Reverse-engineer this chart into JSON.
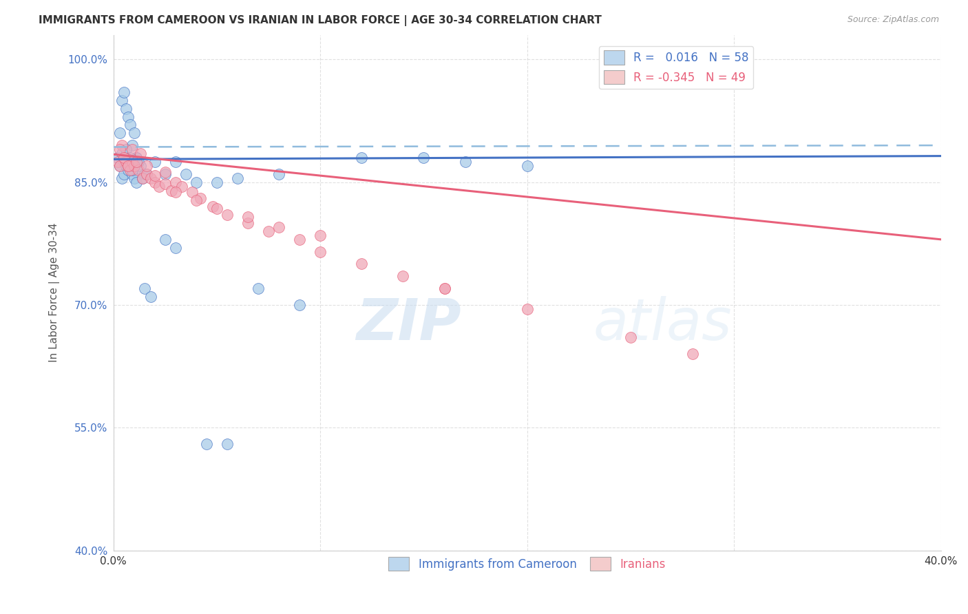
{
  "title": "IMMIGRANTS FROM CAMEROON VS IRANIAN IN LABOR FORCE | AGE 30-34 CORRELATION CHART",
  "source": "Source: ZipAtlas.com",
  "ylabel": "In Labor Force | Age 30-34",
  "xlim": [
    0.0,
    0.4
  ],
  "ylim": [
    0.4,
    1.03
  ],
  "xticks": [
    0.0,
    0.1,
    0.2,
    0.3,
    0.4
  ],
  "xtick_labels": [
    "0.0%",
    "",
    "",
    "",
    "40.0%"
  ],
  "ytick_labels": [
    "40.0%",
    "55.0%",
    "70.0%",
    "85.0%",
    "100.0%"
  ],
  "yticks": [
    0.4,
    0.55,
    0.7,
    0.85,
    1.0
  ],
  "R_blue": 0.016,
  "N_blue": 58,
  "R_pink": -0.345,
  "N_pink": 49,
  "blue_color": "#A8CCE8",
  "pink_color": "#F0A8B8",
  "blue_line_color": "#4472C4",
  "pink_line_color": "#E8607A",
  "dashed_line_color": "#90BBDD",
  "legend_box_blue": "#BDD7EE",
  "legend_box_pink": "#F4CCCC",
  "blue_points_x": [
    0.002,
    0.003,
    0.004,
    0.005,
    0.006,
    0.007,
    0.008,
    0.009,
    0.01,
    0.011,
    0.003,
    0.004,
    0.005,
    0.006,
    0.007,
    0.008,
    0.009,
    0.01,
    0.011,
    0.012,
    0.004,
    0.005,
    0.006,
    0.007,
    0.008,
    0.009,
    0.01,
    0.011,
    0.013,
    0.015,
    0.006,
    0.007,
    0.008,
    0.009,
    0.01,
    0.012,
    0.014,
    0.016,
    0.02,
    0.025,
    0.03,
    0.035,
    0.04,
    0.05,
    0.06,
    0.08,
    0.12,
    0.15,
    0.17,
    0.2,
    0.015,
    0.018,
    0.025,
    0.03,
    0.045,
    0.055,
    0.07,
    0.09
  ],
  "blue_points_y": [
    0.88,
    0.91,
    0.95,
    0.96,
    0.94,
    0.93,
    0.92,
    0.895,
    0.91,
    0.88,
    0.87,
    0.885,
    0.875,
    0.89,
    0.87,
    0.875,
    0.865,
    0.87,
    0.88,
    0.86,
    0.855,
    0.86,
    0.87,
    0.865,
    0.875,
    0.86,
    0.855,
    0.85,
    0.87,
    0.86,
    0.875,
    0.87,
    0.88,
    0.865,
    0.87,
    0.875,
    0.855,
    0.86,
    0.875,
    0.86,
    0.875,
    0.86,
    0.85,
    0.85,
    0.855,
    0.86,
    0.88,
    0.88,
    0.875,
    0.87,
    0.72,
    0.71,
    0.78,
    0.77,
    0.53,
    0.53,
    0.72,
    0.7
  ],
  "pink_points_x": [
    0.002,
    0.003,
    0.004,
    0.005,
    0.006,
    0.007,
    0.008,
    0.009,
    0.01,
    0.012,
    0.014,
    0.016,
    0.018,
    0.02,
    0.022,
    0.025,
    0.028,
    0.03,
    0.033,
    0.038,
    0.042,
    0.048,
    0.055,
    0.065,
    0.075,
    0.09,
    0.1,
    0.12,
    0.14,
    0.16,
    0.003,
    0.005,
    0.007,
    0.009,
    0.011,
    0.013,
    0.016,
    0.02,
    0.025,
    0.03,
    0.04,
    0.05,
    0.065,
    0.08,
    0.1,
    0.16,
    0.2,
    0.25,
    0.28
  ],
  "pink_points_y": [
    0.875,
    0.87,
    0.895,
    0.88,
    0.875,
    0.87,
    0.865,
    0.875,
    0.87,
    0.865,
    0.855,
    0.86,
    0.855,
    0.85,
    0.845,
    0.848,
    0.84,
    0.85,
    0.845,
    0.838,
    0.83,
    0.82,
    0.81,
    0.8,
    0.79,
    0.78,
    0.765,
    0.75,
    0.735,
    0.72,
    0.89,
    0.88,
    0.87,
    0.89,
    0.875,
    0.885,
    0.87,
    0.858,
    0.862,
    0.838,
    0.828,
    0.818,
    0.808,
    0.795,
    0.785,
    0.72,
    0.695,
    0.66,
    0.64
  ],
  "blue_line_x0": 0.0,
  "blue_line_x1": 0.4,
  "blue_line_y0": 0.878,
  "blue_line_y1": 0.882,
  "dashed_line_y0": 0.893,
  "dashed_line_y1": 0.895,
  "pink_line_y0": 0.884,
  "pink_line_y1": 0.78,
  "watermark_zip": "ZIP",
  "watermark_atlas": "atlas",
  "background_color": "#FFFFFF",
  "grid_color": "#CCCCCC"
}
